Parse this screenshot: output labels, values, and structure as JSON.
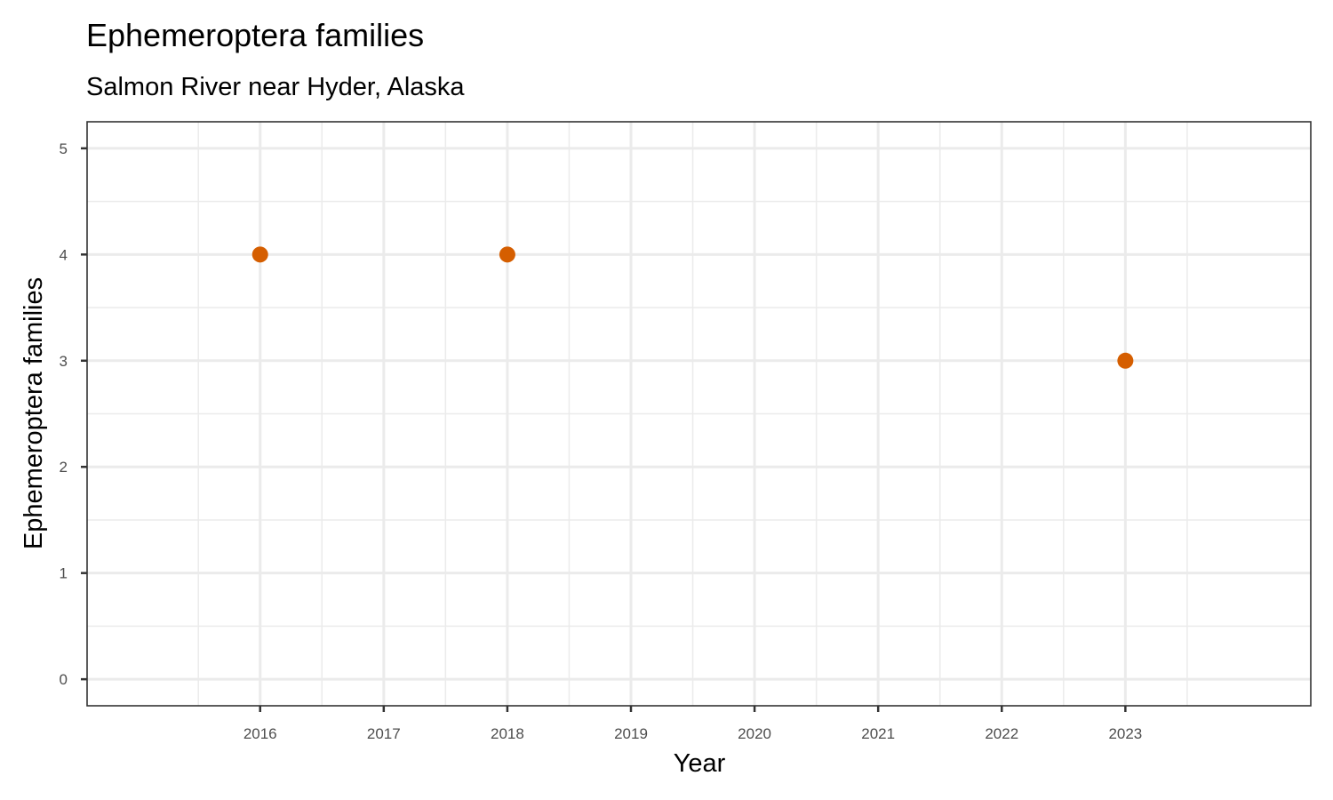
{
  "chart_data": {
    "type": "scatter",
    "title": "Ephemeroptera families",
    "subtitle": "Salmon River near Hyder, Alaska",
    "xlabel": "Year",
    "ylabel": "Ephemeroptera families",
    "x_ticks": [
      "2016",
      "2017",
      "2018",
      "2019",
      "2020",
      "2021",
      "2022",
      "2023"
    ],
    "y_ticks": [
      "0",
      "1",
      "2",
      "3",
      "4",
      "5"
    ],
    "xlim": [
      2014.6,
      2024.5
    ],
    "ylim": [
      -0.25,
      5.25
    ],
    "grid": true,
    "point_color": "#d55e00",
    "points": [
      {
        "x": 2016,
        "y": 4
      },
      {
        "x": 2018,
        "y": 4
      },
      {
        "x": 2023,
        "y": 3
      }
    ]
  }
}
